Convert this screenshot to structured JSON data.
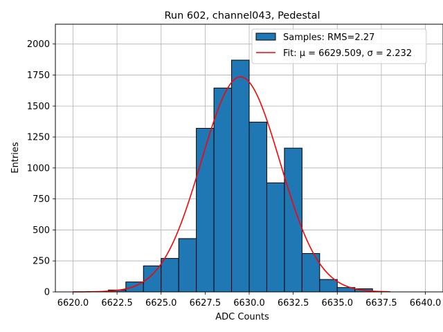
{
  "chart_data": {
    "type": "bar",
    "title": "Run 602, channel043, Pedestal",
    "xlabel": "ADC Counts",
    "ylabel": "Entries",
    "xlim": [
      6619.0,
      6641.0
    ],
    "ylim": [
      0,
      2160
    ],
    "x_ticks": [
      {
        "value": 6620.0,
        "label": "6620.0"
      },
      {
        "value": 6622.5,
        "label": "6622.5"
      },
      {
        "value": 6625.0,
        "label": "6625.0"
      },
      {
        "value": 6627.5,
        "label": "6627.5"
      },
      {
        "value": 6630.0,
        "label": "6630.0"
      },
      {
        "value": 6632.5,
        "label": "6632.5"
      },
      {
        "value": 6635.0,
        "label": "6635.0"
      },
      {
        "value": 6637.5,
        "label": "6637.5"
      },
      {
        "value": 6640.0,
        "label": "6640.0"
      }
    ],
    "y_ticks": [
      {
        "value": 0,
        "label": "0"
      },
      {
        "value": 250,
        "label": "250"
      },
      {
        "value": 500,
        "label": "500"
      },
      {
        "value": 750,
        "label": "750"
      },
      {
        "value": 1000,
        "label": "1000"
      },
      {
        "value": 1250,
        "label": "1250"
      },
      {
        "value": 1500,
        "label": "1500"
      },
      {
        "value": 1750,
        "label": "1750"
      },
      {
        "value": 2000,
        "label": "2000"
      }
    ],
    "grid": true,
    "legend_position": "top-right",
    "histogram": {
      "name": "Samples: RMS=2.27",
      "color": "#1f77b4",
      "edge_color": "#000000",
      "bin_edges": [
        6622,
        6623,
        6624,
        6625,
        6626,
        6627,
        6628,
        6629,
        6630,
        6631,
        6632,
        6633,
        6634,
        6635,
        6636,
        6637
      ],
      "counts": [
        15,
        80,
        210,
        270,
        430,
        1320,
        1645,
        1870,
        1370,
        880,
        1160,
        310,
        100,
        35,
        25
      ]
    },
    "fit": {
      "name": "Fit: μ = 6629.509, σ = 2.232",
      "color": "#ff0000",
      "mu": 6629.509,
      "sigma": 2.232,
      "amplitude": 1735,
      "x_range": [
        6620.0,
        6638.0
      ]
    }
  }
}
